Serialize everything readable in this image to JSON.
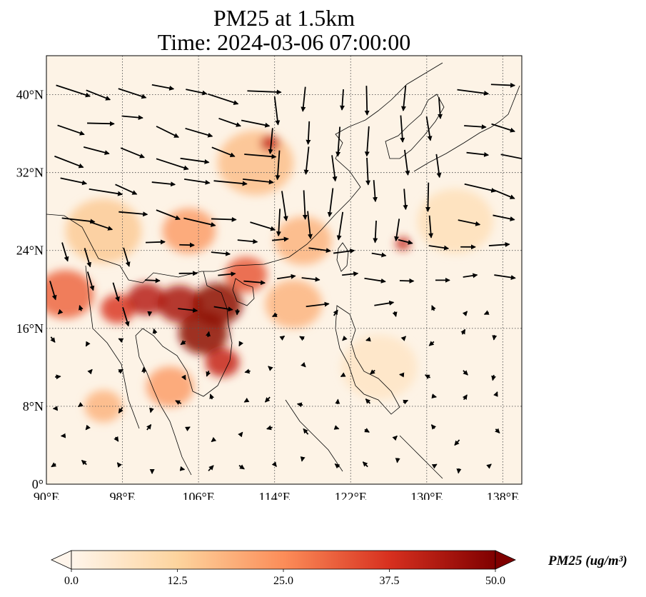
{
  "title": {
    "line1": "PM25 at 1.5km",
    "line2": "Time: 2024-03-06 07:00:00"
  },
  "map": {
    "type": "filled-contour map with wind vectors",
    "variable": "PM25",
    "lon_range": [
      90,
      140
    ],
    "lat_range": [
      0,
      44
    ],
    "x_ticks": [
      {
        "value": 90,
        "label": "90°E"
      },
      {
        "value": 98,
        "label": "98°E"
      },
      {
        "value": 106,
        "label": "106°E"
      },
      {
        "value": 114,
        "label": "114°E"
      },
      {
        "value": 122,
        "label": "122°E"
      },
      {
        "value": 130,
        "label": "130°E"
      },
      {
        "value": 138,
        "label": "138°E"
      }
    ],
    "y_ticks": [
      {
        "value": 0,
        "label": "0°"
      },
      {
        "value": 8,
        "label": "8°N"
      },
      {
        "value": 16,
        "label": "16°N"
      },
      {
        "value": 24,
        "label": "24°N"
      },
      {
        "value": 32,
        "label": "32°N"
      },
      {
        "value": 40,
        "label": "40°N"
      }
    ],
    "gridlines": "dotted",
    "background_color": "#fdf3e6",
    "hotspots": [
      {
        "lon": 108.0,
        "lat": 18.5,
        "value": 48,
        "r": 2.6
      },
      {
        "lon": 106.5,
        "lat": 15.5,
        "value": 48,
        "r": 2.6
      },
      {
        "lon": 104.0,
        "lat": 18.5,
        "value": 44,
        "r": 2.3
      },
      {
        "lon": 100.5,
        "lat": 19.0,
        "value": 42,
        "r": 2.0
      },
      {
        "lon": 97.5,
        "lat": 18.0,
        "value": 36,
        "r": 1.8
      },
      {
        "lon": 108.5,
        "lat": 12.5,
        "value": 40,
        "r": 1.8
      },
      {
        "lon": 113.5,
        "lat": 35.0,
        "value": 40,
        "r": 1.0
      },
      {
        "lon": 127.5,
        "lat": 24.7,
        "value": 40,
        "r": 0.8
      },
      {
        "lon": 92.0,
        "lat": 19.5,
        "value": 30,
        "r": 3.0
      },
      {
        "lon": 111.0,
        "lat": 21.5,
        "value": 32,
        "r": 2.2
      },
      {
        "lon": 105.0,
        "lat": 26.0,
        "value": 22,
        "r": 2.8
      },
      {
        "lon": 112.0,
        "lat": 33.0,
        "value": 16,
        "r": 4.0
      },
      {
        "lon": 117.0,
        "lat": 25.0,
        "value": 18,
        "r": 3.0
      },
      {
        "lon": 96.0,
        "lat": 8.0,
        "value": 18,
        "r": 2.0
      },
      {
        "lon": 103.0,
        "lat": 10.0,
        "value": 22,
        "r": 2.5
      },
      {
        "lon": 116.0,
        "lat": 18.5,
        "value": 18,
        "r": 3.0
      },
      {
        "lon": 96.0,
        "lat": 26.0,
        "value": 14,
        "r": 4.0
      },
      {
        "lon": 125.0,
        "lat": 12.0,
        "value": 6,
        "r": 4.0
      },
      {
        "lon": 133.0,
        "lat": 27.0,
        "value": 8,
        "r": 4.0
      }
    ]
  },
  "colorbar": {
    "label": "PM25 (ug/m³)",
    "min": 0,
    "max": 50,
    "ticks": [
      "0.0",
      "12.5",
      "25.0",
      "37.5",
      "50.0"
    ],
    "colors": [
      "#fff5eb",
      "#fdd49e",
      "#fc8d59",
      "#d7301f",
      "#7f0000"
    ],
    "extend": "both"
  }
}
